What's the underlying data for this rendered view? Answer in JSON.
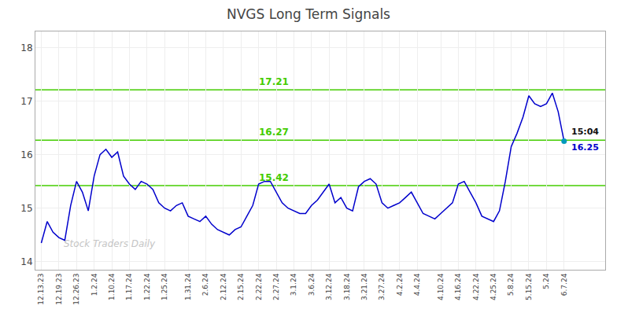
{
  "chart_data": {
    "type": "line",
    "title": "NVGS Long Term Signals",
    "categories": [
      "12.13.23",
      null,
      null,
      "12.19.23",
      null,
      null,
      "12.26.23",
      null,
      null,
      "1.2.24",
      null,
      null,
      "1.10.24",
      null,
      null,
      "1.17.24",
      null,
      null,
      "1.22.24",
      null,
      null,
      "1.25.24",
      null,
      null,
      null,
      "1.31.24",
      null,
      null,
      "2.6.24",
      null,
      null,
      "2.12.24",
      null,
      null,
      "2.15.24",
      null,
      null,
      "2.22.24",
      null,
      null,
      "2.27.24",
      null,
      null,
      "3.1.24",
      null,
      null,
      "3.6.24",
      null,
      null,
      "3.12.24",
      null,
      null,
      "3.18.24",
      null,
      null,
      "3.21.24",
      null,
      null,
      "3.27.24",
      null,
      null,
      "4.2.24",
      null,
      null,
      "4.4.24",
      null,
      null,
      null,
      "4.10.24",
      null,
      null,
      "4.16.24",
      null,
      null,
      "4.22.24",
      null,
      null,
      "4.25.24",
      null,
      null,
      "5.8.24",
      null,
      null,
      "5.15.24",
      null,
      null,
      "5.24",
      null,
      null,
      "6.7.24"
    ],
    "values": [
      14.35,
      14.75,
      14.55,
      14.45,
      14.4,
      15.05,
      15.5,
      15.3,
      14.95,
      15.6,
      16.0,
      16.1,
      15.95,
      16.05,
      15.6,
      15.45,
      15.35,
      15.5,
      15.45,
      15.35,
      15.1,
      15.0,
      14.95,
      15.05,
      15.1,
      14.85,
      14.8,
      14.75,
      14.85,
      14.7,
      14.6,
      14.55,
      14.5,
      14.6,
      14.65,
      14.85,
      15.05,
      15.45,
      15.5,
      15.5,
      15.3,
      15.1,
      15.0,
      14.95,
      14.9,
      14.9,
      15.05,
      15.15,
      15.3,
      15.45,
      15.1,
      15.2,
      15.0,
      14.95,
      15.4,
      15.5,
      15.55,
      15.45,
      15.1,
      15.0,
      15.05,
      15.1,
      15.2,
      15.3,
      15.1,
      14.9,
      14.85,
      14.8,
      14.9,
      15.0,
      15.1,
      15.45,
      15.5,
      15.3,
      15.1,
      14.85,
      14.8,
      14.75,
      14.95,
      15.5,
      16.15,
      16.4,
      16.7,
      17.1,
      16.95,
      16.9,
      16.95,
      17.15,
      16.8,
      16.25
    ],
    "color": "#0000cc",
    "hlines": [
      {
        "value": 15.42,
        "label": "15.42"
      },
      {
        "value": 16.27,
        "label": "16.27"
      },
      {
        "value": 17.21,
        "label": "17.21"
      }
    ],
    "hline_color": "#44cc00",
    "last_point": {
      "color": "#0099bb",
      "labels": [
        "15:04",
        "16.25"
      ]
    },
    "watermark": "Stock Traders Daily",
    "ylim": [
      13.85,
      18.3
    ],
    "yticks": [
      14,
      15,
      16,
      17,
      18
    ],
    "grid": true
  }
}
